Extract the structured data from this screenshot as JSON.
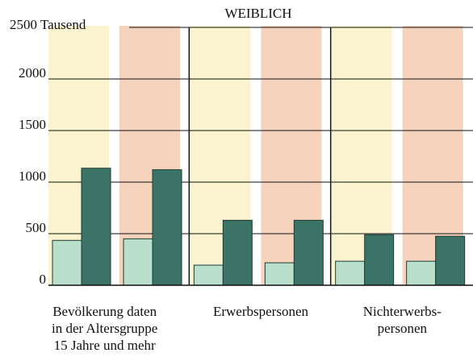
{
  "chart_data": {
    "type": "bar",
    "title": "WEIBLICH",
    "categories": [
      null,
      null,
      null,
      null,
      null,
      null
    ],
    "group_labels": [
      [
        "Bevölkerung daten",
        "in der Altersgruppe",
        "15 Jahre und mehr"
      ],
      [
        "Erwerbspersonen"
      ],
      [
        "Nichterwerbs-",
        "personen"
      ]
    ],
    "series": [
      {
        "color": "#b8e0cc",
        "values": [
          435,
          450,
          195,
          218,
          233,
          233
        ]
      },
      {
        "color": "#3b7467",
        "values": [
          1135,
          1120,
          630,
          630,
          490,
          475
        ]
      }
    ],
    "panel_colors": [
      "#fbf3cf",
      "#f5d3bd"
    ],
    "ylim": [
      0,
      2500
    ],
    "yticks": [
      0,
      500,
      1000,
      1500,
      2000,
      {
        "value": 2500,
        "label": "2500 Tausend"
      }
    ],
    "grid": true
  }
}
